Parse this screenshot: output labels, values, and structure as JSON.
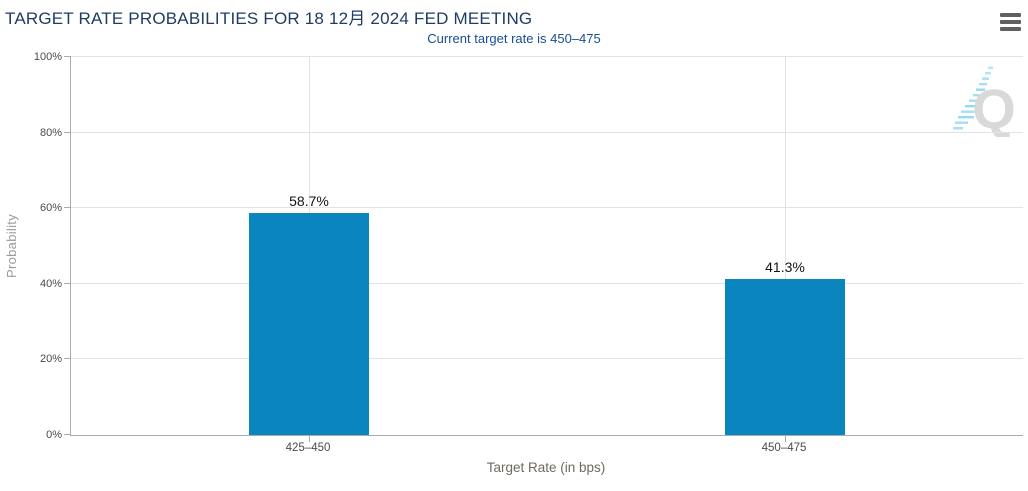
{
  "header": {
    "title": "TARGET RATE PROBABILITIES FOR 18 12月 2024 FED MEETING",
    "subtitle": "Current target rate is 450–475"
  },
  "chart_data": {
    "type": "bar",
    "title": "TARGET RATE PROBABILITIES FOR 18 12月 2024 FED MEETING",
    "subtitle": "Current target rate is 450–475",
    "categories": [
      "425–450",
      "450–475"
    ],
    "values": [
      58.7,
      41.3
    ],
    "value_labels": [
      "58.7%",
      "41.3%"
    ],
    "xlabel": "Target Rate (in bps)",
    "ylabel": "Probability",
    "ylim": [
      0,
      100
    ],
    "yticks": [
      "0%",
      "20%",
      "40%",
      "60%",
      "80%",
      "100%"
    ],
    "grid": "horizontal lines every 20%, vertical line at each category center",
    "legend": "none"
  },
  "colors": {
    "bar": "#0b85bd",
    "title": "#1e3c64",
    "subtitle": "#174f8f",
    "gridline": "#e3e3e3",
    "axis": "#ababab",
    "watermark_q": "#d9d9d9",
    "watermark_dash": "#a6dff2"
  },
  "watermark": {
    "letter": "Q"
  }
}
